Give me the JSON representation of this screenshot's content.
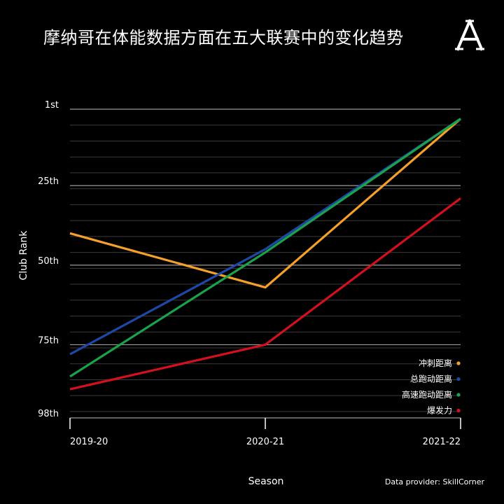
{
  "title": "摩纳哥在体能数据方面在五大联赛中的变化趋势",
  "logo": {
    "letter": "A",
    "icon": "athletic-a-logo"
  },
  "provider": "Data provider: SkillCorner",
  "colors": {
    "background": "#000000",
    "grid_major": "#9a9a9a",
    "grid_minor": "#3a3a3a"
  },
  "chart_data": {
    "type": "line",
    "xlabel": "Season",
    "ylabel": "Club Rank",
    "categories": [
      "2019-20",
      "2020-21",
      "2021-22"
    ],
    "y_reversed": true,
    "ylim": [
      1,
      98
    ],
    "yticks": [
      {
        "value": 1,
        "label": "1st"
      },
      {
        "value": 25,
        "label": "25th"
      },
      {
        "value": 50,
        "label": "50th"
      },
      {
        "value": 75,
        "label": "75th"
      },
      {
        "value": 98,
        "label": "98th"
      }
    ],
    "grid": true,
    "legend_position": "bottom-right",
    "series": [
      {
        "name": "冲刺距离",
        "color": "#f5a02a",
        "values": [
          40,
          57,
          4
        ]
      },
      {
        "name": "总跑动距离",
        "color": "#1f48a6",
        "values": [
          78,
          45,
          4
        ]
      },
      {
        "name": "高速跑动距离",
        "color": "#19a34a",
        "values": [
          85,
          46,
          4
        ]
      },
      {
        "name": "爆发力",
        "color": "#d40f1e",
        "values": [
          89,
          75,
          29
        ]
      }
    ]
  }
}
